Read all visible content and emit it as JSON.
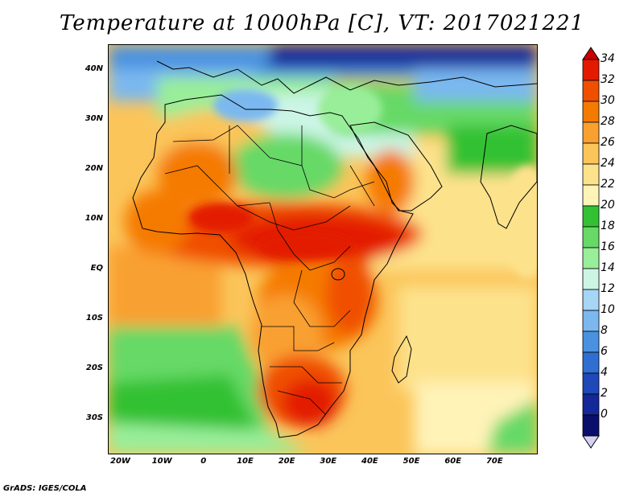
{
  "title": "Temperature at 1000hPa [C], VT: 2017021221",
  "footer": "GrADS: IGES/COLA",
  "map": {
    "lon_range": [
      -23,
      80
    ],
    "lat_range": [
      -37,
      45
    ],
    "lat_labels": [
      "40N",
      "30N",
      "20N",
      "10N",
      "EQ",
      "10S",
      "20S",
      "30S"
    ],
    "lat_values": [
      40,
      30,
      20,
      10,
      0,
      -10,
      -20,
      -30
    ],
    "lon_labels": [
      "20W",
      "10W",
      "0",
      "10E",
      "20E",
      "30E",
      "40E",
      "50E",
      "60E",
      "70E"
    ],
    "lon_values": [
      -20,
      -10,
      0,
      10,
      20,
      30,
      40,
      50,
      60,
      70
    ]
  },
  "colorbar": {
    "labels": [
      "34",
      "32",
      "30",
      "28",
      "26",
      "24",
      "22",
      "20",
      "18",
      "16",
      "14",
      "12",
      "10",
      "8",
      "6",
      "4",
      "2",
      "0"
    ],
    "colors": [
      "#e31a00",
      "#f04f00",
      "#f57a00",
      "#f9a030",
      "#fbc55a",
      "#fde28c",
      "#fff3b8",
      "#33c133",
      "#66d966",
      "#99ee99",
      "#ccf5e6",
      "#a6d5f5",
      "#7ab8ef",
      "#4a92e0",
      "#2e6fd1",
      "#1f48b8",
      "#14289a",
      "#0a0f6b"
    ],
    "over_color": "#cc0000",
    "under_color": "#d6d0f5"
  }
}
